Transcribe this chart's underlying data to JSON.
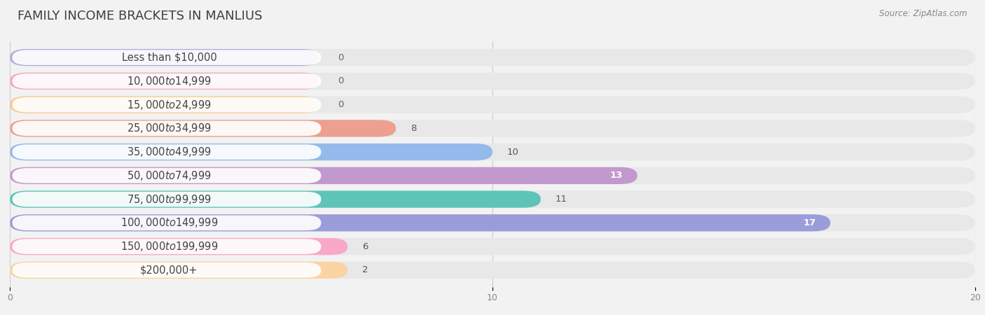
{
  "title": "FAMILY INCOME BRACKETS IN MANLIUS",
  "source": "Source: ZipAtlas.com",
  "categories": [
    "Less than $10,000",
    "$10,000 to $14,999",
    "$15,000 to $24,999",
    "$25,000 to $34,999",
    "$35,000 to $49,999",
    "$50,000 to $74,999",
    "$75,000 to $99,999",
    "$100,000 to $149,999",
    "$150,000 to $199,999",
    "$200,000+"
  ],
  "values": [
    0,
    0,
    0,
    8,
    10,
    13,
    11,
    17,
    6,
    2
  ],
  "bar_colors": [
    "#b0aedd",
    "#f5a8bc",
    "#fac991",
    "#eda090",
    "#93baeb",
    "#c299ce",
    "#5ec4b8",
    "#9b9cda",
    "#f9a8c8",
    "#fad4a4"
  ],
  "xlim": [
    0,
    20
  ],
  "xticks": [
    0,
    10,
    20
  ],
  "background_color": "#f2f2f2",
  "bar_bg_color": "#e8e8e8",
  "label_bg_color": "#ffffff",
  "title_fontsize": 13,
  "label_fontsize": 10.5,
  "value_fontsize": 9.5
}
